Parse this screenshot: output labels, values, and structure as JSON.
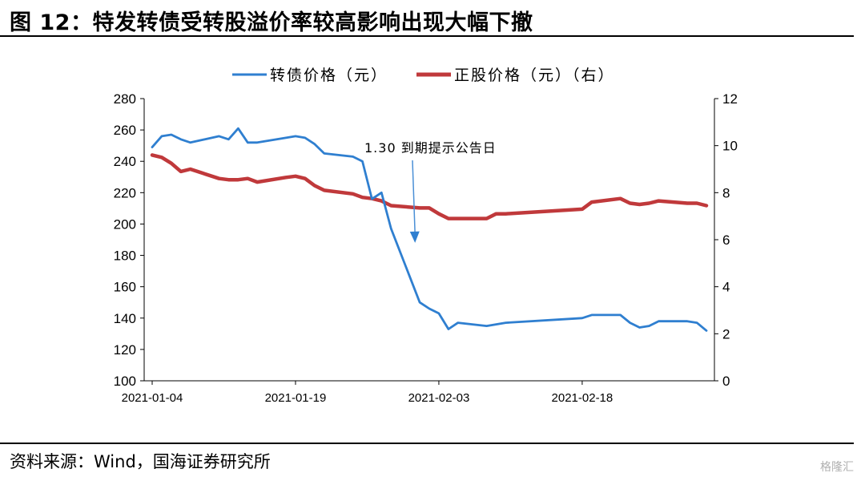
{
  "figure": {
    "title": "图 12：特发转债受转股溢价率较高影响出现大幅下撤",
    "source": "资料来源：Wind，国海证券研究所",
    "watermark": "格隆汇"
  },
  "chart_data": {
    "type": "line",
    "title": "",
    "xlabel": "",
    "ylabel": "",
    "y2label": "",
    "x_ticks": [
      "2021-01-04",
      "2021-01-19",
      "2021-02-03",
      "2021-02-18"
    ],
    "ylim": [
      100,
      280
    ],
    "y_ticks": [
      "100",
      "120",
      "140",
      "160",
      "180",
      "200",
      "220",
      "240",
      "260",
      "280"
    ],
    "y2lim": [
      0,
      12
    ],
    "y2_ticks": [
      "0",
      "2",
      "4",
      "6",
      "8",
      "10",
      "12"
    ],
    "legend_position": "top-center",
    "grid": false,
    "annotation": {
      "text": "1.30 到期提示公告日",
      "date": "2021-01-30",
      "value": 186
    },
    "series": [
      {
        "name": "转债价格（元）",
        "axis": "left",
        "color": "#2F7FD0",
        "x": [
          "2021-01-04",
          "2021-01-05",
          "2021-01-06",
          "2021-01-07",
          "2021-01-08",
          "2021-01-11",
          "2021-01-12",
          "2021-01-13",
          "2021-01-14",
          "2021-01-15",
          "2021-01-18",
          "2021-01-19",
          "2021-01-20",
          "2021-01-21",
          "2021-01-22",
          "2021-01-25",
          "2021-01-26",
          "2021-01-27",
          "2021-01-28",
          "2021-01-29",
          "2021-02-01",
          "2021-02-02",
          "2021-02-03",
          "2021-02-04",
          "2021-02-05",
          "2021-02-08",
          "2021-02-09",
          "2021-02-10",
          "2021-02-18",
          "2021-02-19",
          "2021-02-22",
          "2021-02-23",
          "2021-02-24",
          "2021-02-25",
          "2021-02-26",
          "2021-03-01",
          "2021-03-02",
          "2021-03-03"
        ],
        "values": [
          249,
          256,
          257,
          254,
          252,
          256,
          254,
          261,
          252,
          252,
          255,
          256,
          255,
          251,
          245,
          243,
          240,
          216,
          220,
          197,
          150,
          146,
          143,
          133,
          137,
          135,
          136,
          137,
          140,
          142,
          142,
          137,
          134,
          135,
          138,
          138,
          137,
          132
        ]
      },
      {
        "name": "正股价格（元）（右）",
        "axis": "right",
        "color": "#C0393B",
        "x": [
          "2021-01-04",
          "2021-01-05",
          "2021-01-06",
          "2021-01-07",
          "2021-01-08",
          "2021-01-11",
          "2021-01-12",
          "2021-01-13",
          "2021-01-14",
          "2021-01-15",
          "2021-01-18",
          "2021-01-19",
          "2021-01-20",
          "2021-01-21",
          "2021-01-22",
          "2021-01-25",
          "2021-01-26",
          "2021-01-27",
          "2021-01-28",
          "2021-01-29",
          "2021-02-01",
          "2021-02-02",
          "2021-02-03",
          "2021-02-04",
          "2021-02-05",
          "2021-02-08",
          "2021-02-09",
          "2021-02-10",
          "2021-02-18",
          "2021-02-19",
          "2021-02-22",
          "2021-02-23",
          "2021-02-24",
          "2021-02-25",
          "2021-02-26",
          "2021-03-01",
          "2021-03-02",
          "2021-03-03"
        ],
        "values": [
          9.6,
          9.5,
          9.25,
          8.9,
          9.0,
          8.6,
          8.55,
          8.55,
          8.6,
          8.45,
          8.65,
          8.7,
          8.6,
          8.3,
          8.1,
          7.95,
          7.8,
          7.75,
          7.65,
          7.45,
          7.35,
          7.35,
          7.1,
          6.9,
          6.9,
          6.9,
          7.1,
          7.1,
          7.3,
          7.6,
          7.75,
          7.55,
          7.5,
          7.55,
          7.65,
          7.55,
          7.55,
          7.45
        ]
      }
    ]
  }
}
